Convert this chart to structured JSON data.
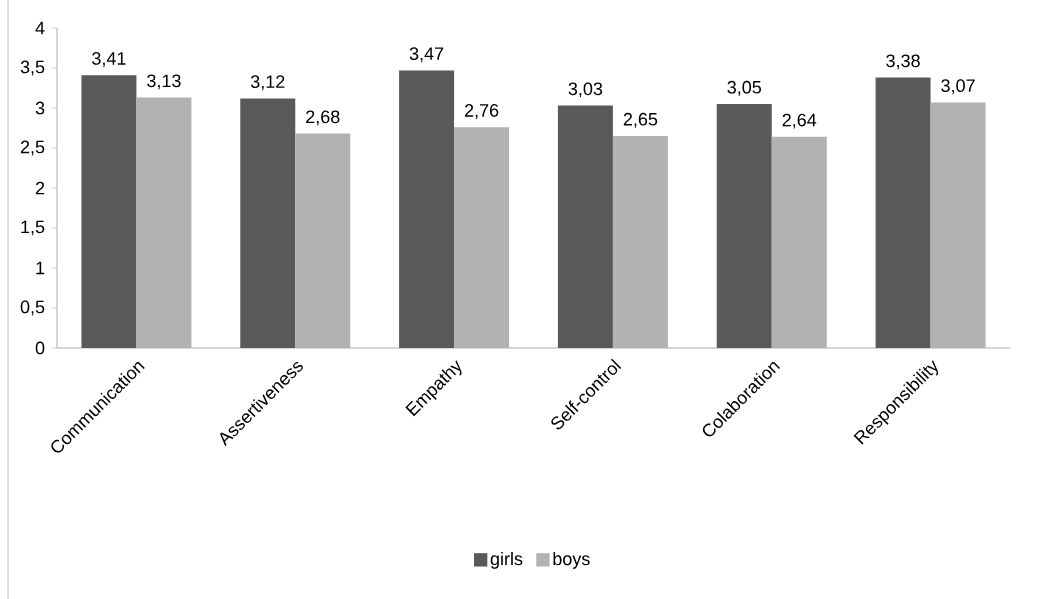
{
  "chart_data": {
    "type": "bar",
    "categories": [
      "Communication",
      "Assertiveness",
      "Empathy",
      "Self-control",
      "Colaboration",
      "Responsibility"
    ],
    "series": [
      {
        "name": "girls",
        "color": "#595959",
        "values": [
          3.41,
          3.12,
          3.47,
          3.03,
          3.05,
          3.38
        ],
        "value_labels": [
          "3,41",
          "3,12",
          "3,47",
          "3,03",
          "3,05",
          "3,38"
        ]
      },
      {
        "name": "boys",
        "color": "#b2b2b2",
        "values": [
          3.13,
          2.68,
          2.76,
          2.65,
          2.64,
          3.07
        ],
        "value_labels": [
          "3,13",
          "2,68",
          "2,76",
          "2,65",
          "2,64",
          "3,07"
        ]
      }
    ],
    "ylim": [
      0,
      4
    ],
    "yticks": [
      0,
      {
        "value": 0.5,
        "label": "0,5"
      },
      1,
      {
        "value": 1.5,
        "label": "1,5"
      },
      2,
      {
        "value": 2.5,
        "label": "2,5"
      },
      3,
      {
        "value": 3.5,
        "label": "3,5"
      },
      4
    ],
    "legend": "bottom"
  }
}
